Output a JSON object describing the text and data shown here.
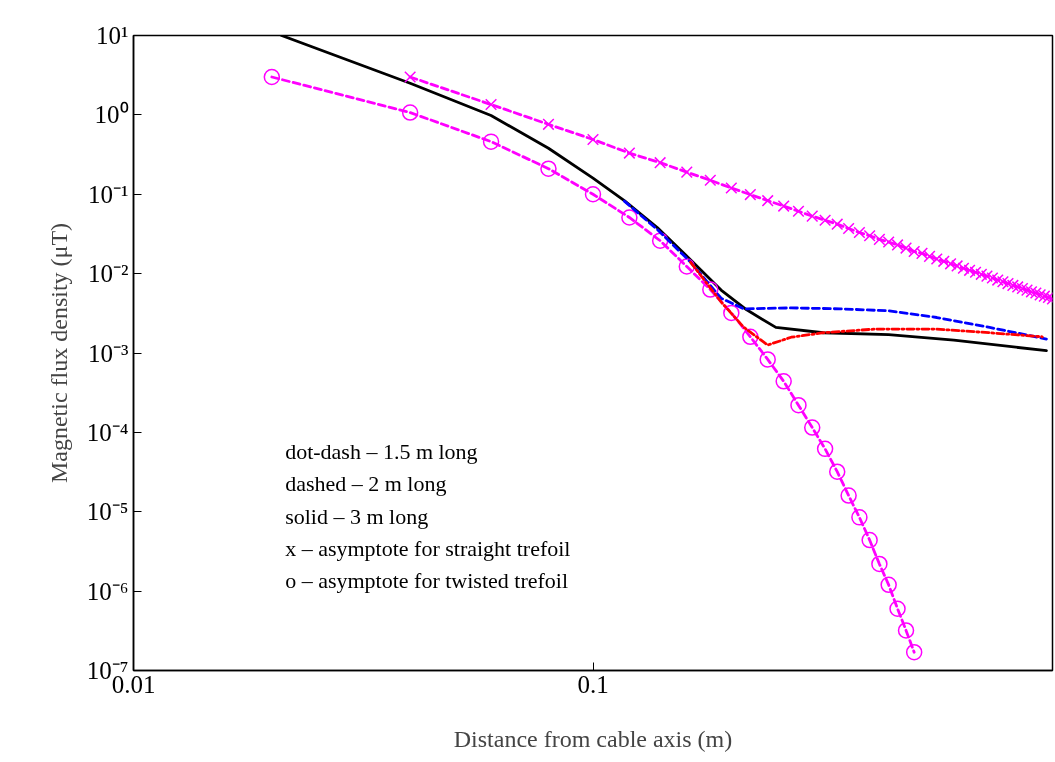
{
  "chart_data": {
    "type": "line",
    "xlabel": "Distance from cable axis (m)",
    "ylabel": "Magnetic flux density (μT)",
    "log": "xy",
    "grid": false,
    "xlim": [
      0.01,
      1
    ],
    "ylim": [
      1e-07,
      10
    ],
    "xticks": [
      0.01,
      0.1
    ],
    "yticks": [
      {
        "value": 10,
        "label": "10¹"
      },
      {
        "value": 1,
        "label": "10⁰"
      },
      {
        "value": 0.1,
        "label": "10⁻¹"
      },
      {
        "value": 0.01,
        "label": "10⁻²"
      },
      {
        "value": 0.001,
        "label": "10⁻³"
      },
      {
        "value": 0.0001,
        "label": "10⁻⁴"
      },
      {
        "value": 1e-05,
        "label": "10⁻⁵"
      },
      {
        "value": 1e-06,
        "label": "10⁻⁶"
      },
      {
        "value": 1e-07,
        "label": "10⁻⁷"
      }
    ],
    "annotations": [
      "dot-dash – 1.5 m long",
      "dashed – 2 m long",
      "solid – 3 m long",
      "x – asymptote for straight trefoil",
      "o – asymptote for twisted trefoil"
    ],
    "series": [
      {
        "color": "#ff0000",
        "line_style": "dashdot",
        "marker": "none",
        "x": [
          0.163,
          0.19,
          0.213,
          0.24,
          0.27,
          0.317,
          0.41,
          0.56,
          0.73,
          0.95
        ],
        "values": [
          0.014,
          0.0044,
          0.0021,
          0.00126,
          0.00158,
          0.0018,
          0.002,
          0.002,
          0.0018,
          0.0016
        ]
      },
      {
        "color": "#0000ff",
        "line_style": "dashed",
        "marker": "none",
        "x": [
          0.117,
          0.138,
          0.163,
          0.19,
          0.213,
          0.27,
          0.345,
          0.44,
          0.56,
          0.73,
          0.97
        ],
        "values": [
          0.082,
          0.036,
          0.014,
          0.0049,
          0.0036,
          0.0037,
          0.0036,
          0.0034,
          0.0028,
          0.0021,
          0.0015
        ]
      },
      {
        "color": "#000000",
        "line_style": "solid",
        "marker": "none",
        "x": [
          0.021,
          0.04,
          0.06,
          0.08,
          0.1,
          0.117,
          0.138,
          0.163,
          0.19,
          0.216,
          0.25,
          0.317,
          0.44,
          0.61,
          0.97
        ],
        "values": [
          10,
          2.5,
          0.98,
          0.38,
          0.16,
          0.083,
          0.038,
          0.015,
          0.0062,
          0.0035,
          0.0021,
          0.0018,
          0.0017,
          0.00145,
          0.00107
        ]
      },
      {
        "color": "#ff00ff",
        "line_style": "dashed",
        "marker": "cross",
        "x": [
          0.04,
          0.06,
          0.08,
          0.1,
          0.12,
          0.14,
          0.16,
          0.18,
          0.2,
          0.22,
          0.24,
          0.26,
          0.28,
          0.3,
          0.32,
          0.34,
          0.36,
          0.38,
          0.4,
          0.42,
          0.44,
          0.46,
          0.48,
          0.5,
          0.52,
          0.54,
          0.56,
          0.58,
          0.6,
          0.62,
          0.64,
          0.66,
          0.68,
          0.7,
          0.72,
          0.74,
          0.76,
          0.78,
          0.8,
          0.82,
          0.84,
          0.86,
          0.88,
          0.9,
          0.92,
          0.94,
          0.96,
          0.98,
          1.0
        ],
        "values": [
          3.0,
          1.35,
          0.76,
          0.49,
          0.33,
          0.25,
          0.19,
          0.15,
          0.12,
          0.099,
          0.083,
          0.071,
          0.061,
          0.053,
          0.047,
          0.042,
          0.037,
          0.033,
          0.03,
          0.027,
          0.025,
          0.023,
          0.021,
          0.019,
          0.018,
          0.0165,
          0.0153,
          0.0143,
          0.0133,
          0.0125,
          0.0117,
          0.011,
          0.0104,
          0.0098,
          0.0093,
          0.0088,
          0.0083,
          0.0079,
          0.0075,
          0.0071,
          0.0068,
          0.0065,
          0.0062,
          0.0059,
          0.0057,
          0.0054,
          0.0052,
          0.005,
          0.0048
        ]
      },
      {
        "color": "#ff00ff",
        "line_style": "dashed",
        "marker": "circle",
        "x": [
          0.02,
          0.04,
          0.06,
          0.08,
          0.1,
          0.12,
          0.14,
          0.16,
          0.18,
          0.2,
          0.22,
          0.24,
          0.26,
          0.28,
          0.3,
          0.32,
          0.34,
          0.36,
          0.38,
          0.4,
          0.42,
          0.44,
          0.46,
          0.48,
          0.5
        ],
        "values": [
          3.0,
          1.07,
          0.46,
          0.21,
          0.1,
          0.051,
          0.026,
          0.0123,
          0.0063,
          0.0032,
          0.0016,
          0.00083,
          0.00044,
          0.00022,
          0.000115,
          6.2e-05,
          3.2e-05,
          1.6e-05,
          8.5e-06,
          4.4e-06,
          2.2e-06,
          1.2e-06,
          6e-07,
          3.2e-07,
          1.7e-07
        ]
      }
    ]
  }
}
